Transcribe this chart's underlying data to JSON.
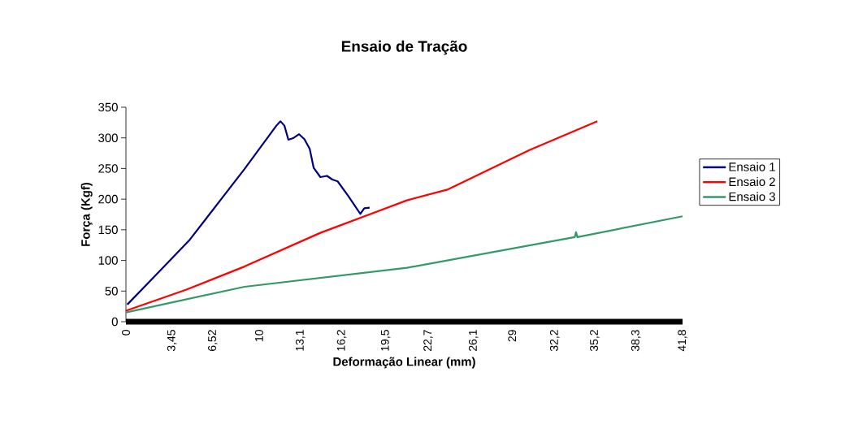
{
  "chart_data": {
    "type": "line",
    "title": "Ensaio de Tração",
    "xlabel": "Deformação Linear (mm)",
    "ylabel": "Força (Kgf)",
    "series": [
      {
        "name": "Ensaio 1",
        "color": "#000080",
        "x": [
          0.1,
          2.5,
          4.8,
          8.9,
          11.3,
          11.6,
          11.9,
          12.2,
          12.6,
          13.0,
          13.4,
          13.8,
          14.1,
          14.6,
          15.1,
          15.5,
          15.9,
          16.7,
          17.6,
          17.9,
          18.3
        ],
        "values": [
          28,
          82,
          134,
          249,
          320,
          327,
          320,
          297,
          300,
          306,
          298,
          282,
          251,
          236,
          238,
          232,
          229,
          205,
          176,
          185,
          186
        ]
      },
      {
        "name": "Ensaio 2",
        "color": "#ff0000",
        "x": [
          0,
          4.5,
          8.9,
          14.6,
          21.1,
          24.2,
          30.3,
          35.4
        ],
        "values": [
          18,
          52,
          90,
          145,
          198,
          216,
          280,
          327
        ]
      },
      {
        "name": "Ensaio 3",
        "color": "#339966",
        "x": [
          0,
          8.9,
          21.1,
          33.7,
          33.8,
          33.9,
          41.8
        ],
        "values": [
          15,
          57,
          88,
          138,
          146,
          138,
          172
        ]
      }
    ],
    "xlim": [
      0,
      41.8
    ],
    "xticks": [
      0,
      {
        "value": 3.45,
        "label": "3,45"
      },
      {
        "value": 6.52,
        "label": "6,52"
      },
      10,
      {
        "value": 13.1,
        "label": "13,1"
      },
      {
        "value": 16.2,
        "label": "16,2"
      },
      {
        "value": 19.5,
        "label": "19,5"
      },
      {
        "value": 22.7,
        "label": "22,7"
      },
      {
        "value": 26.1,
        "label": "26,1"
      },
      29,
      {
        "value": 32.2,
        "label": "32,2"
      },
      {
        "value": 35.2,
        "label": "35,2"
      },
      {
        "value": 38.3,
        "label": "38,3"
      },
      {
        "value": 41.8,
        "label": "41,8"
      }
    ],
    "ylim": [
      0,
      350
    ],
    "yticks": [
      0,
      50,
      100,
      150,
      200,
      250,
      300,
      350
    ],
    "grid": false,
    "legend": "right",
    "marker": "none",
    "line_style": "solid"
  }
}
